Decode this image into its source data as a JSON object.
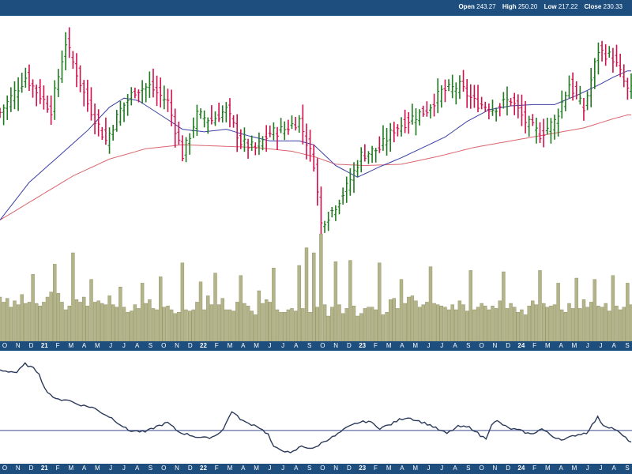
{
  "quote": {
    "open_label": "Open",
    "open": "243.27",
    "high_label": "High",
    "high": "250.20",
    "low_label": "Low",
    "low": "217.22",
    "close_label": "Close",
    "close": "230.33"
  },
  "colors": {
    "header": "#1d4e7e",
    "up": "#1f7a1f",
    "down": "#d0104c",
    "ma_short": "#3a3ea6",
    "ma_long": "#d9646e",
    "volume": "#b4b48a",
    "indicator": "#2b3a5a",
    "indicator_ref": "#3a4a8a"
  },
  "chart_data": [
    {
      "type": "ohlc",
      "name": "price",
      "x_tick_labels": [
        "O",
        "N",
        "D",
        "21",
        "F",
        "M",
        "A",
        "M",
        "J",
        "J",
        "A",
        "S",
        "O",
        "N",
        "D",
        "22",
        "F",
        "M",
        "A",
        "M",
        "J",
        "J",
        "A",
        "S",
        "O",
        "N",
        "D",
        "23",
        "F",
        "M",
        "A",
        "M",
        "J",
        "J",
        "A",
        "S",
        "O",
        "N",
        "D",
        "24",
        "F",
        "M",
        "A",
        "M",
        "J",
        "J",
        "A",
        "S"
      ],
      "x_ticks_bold": [
        "21",
        "22",
        "23",
        "24"
      ],
      "ylim": [
        180,
        370
      ],
      "close_anchors": [
        [
          0,
          298
        ],
        [
          7,
          325
        ],
        [
          14,
          300
        ],
        [
          18,
          352
        ],
        [
          24,
          305
        ],
        [
          29,
          276
        ],
        [
          33,
          300
        ],
        [
          37,
          315
        ],
        [
          41,
          318
        ],
        [
          46,
          306
        ],
        [
          50,
          265
        ],
        [
          54,
          296
        ],
        [
          58,
          292
        ],
        [
          62,
          300
        ],
        [
          66,
          275
        ],
        [
          70,
          270
        ],
        [
          74,
          282
        ],
        [
          78,
          285
        ],
        [
          82,
          292
        ],
        [
          86,
          259
        ],
        [
          88,
          212
        ],
        [
          91,
          222
        ],
        [
          95,
          240
        ],
        [
          99,
          265
        ],
        [
          104,
          270
        ],
        [
          108,
          285
        ],
        [
          113,
          294
        ],
        [
          117,
          300
        ],
        [
          121,
          314
        ],
        [
          126,
          318
        ],
        [
          130,
          306
        ],
        [
          135,
          301
        ],
        [
          140,
          308
        ],
        [
          144,
          291
        ],
        [
          148,
          281
        ],
        [
          152,
          291
        ],
        [
          156,
          320
        ],
        [
          160,
          300
        ],
        [
          164,
          346
        ],
        [
          168,
          340
        ],
        [
          170,
          328
        ],
        [
          172,
          315
        ]
      ],
      "ma_short_anchors": [
        [
          0,
          215
        ],
        [
          8,
          244
        ],
        [
          16,
          264
        ],
        [
          24,
          284
        ],
        [
          30,
          302
        ],
        [
          34,
          309
        ],
        [
          38,
          307
        ],
        [
          44,
          296
        ],
        [
          50,
          285
        ],
        [
          56,
          283
        ],
        [
          62,
          285
        ],
        [
          68,
          280
        ],
        [
          74,
          276
        ],
        [
          78,
          276
        ],
        [
          82,
          276
        ],
        [
          86,
          273
        ],
        [
          92,
          257
        ],
        [
          98,
          248
        ],
        [
          104,
          256
        ],
        [
          110,
          263
        ],
        [
          116,
          271
        ],
        [
          122,
          279
        ],
        [
          128,
          291
        ],
        [
          134,
          300
        ],
        [
          140,
          303
        ],
        [
          146,
          304
        ],
        [
          152,
          304
        ],
        [
          158,
          311
        ],
        [
          164,
          319
        ],
        [
          168,
          325
        ],
        [
          172,
          330
        ]
      ],
      "ma_long_anchors": [
        [
          0,
          215
        ],
        [
          10,
          232
        ],
        [
          20,
          249
        ],
        [
          30,
          262
        ],
        [
          40,
          270
        ],
        [
          50,
          273
        ],
        [
          60,
          272
        ],
        [
          70,
          271
        ],
        [
          80,
          268
        ],
        [
          86,
          264
        ],
        [
          92,
          258
        ],
        [
          100,
          257
        ],
        [
          110,
          258
        ],
        [
          120,
          264
        ],
        [
          130,
          271
        ],
        [
          140,
          276
        ],
        [
          150,
          281
        ],
        [
          160,
          286
        ],
        [
          168,
          293
        ],
        [
          172,
          296
        ]
      ]
    },
    {
      "type": "bar",
      "name": "volume",
      "values": [
        35,
        31,
        34,
        27,
        32,
        29,
        37,
        30,
        31,
        29,
        30,
        28,
        31,
        35,
        39,
        34,
        38,
        31,
        25,
        28,
        40,
        33,
        31,
        35,
        28,
        25,
        31,
        32,
        30,
        29,
        36,
        29,
        27,
        25,
        27,
        23,
        24,
        29,
        26,
        25,
        30,
        33,
        26,
        25,
        24,
        27,
        28,
        25,
        22,
        23,
        27,
        25,
        24,
        25,
        31,
        25,
        25,
        36,
        29,
        28,
        29,
        34,
        25,
        25,
        24,
        31,
        29,
        30,
        28,
        24,
        21,
        40,
        30,
        33,
        31,
        26,
        25,
        23,
        23,
        25,
        26,
        24,
        25,
        26,
        27,
        23,
        20,
        27,
        23,
        29,
        20,
        27,
        24,
        29,
        22,
        26,
        25,
        28,
        20,
        22,
        26,
        27,
        27,
        25,
        24,
        21,
        23,
        33,
        34,
        26,
        28,
        30,
        35,
        36,
        32,
        27,
        29,
        31,
        33,
        30,
        29,
        28,
        27,
        25,
        29,
        25,
        32,
        29,
        24,
        26,
        25,
        27,
        30,
        28,
        25,
        28,
        26,
        32,
        28,
        26,
        30,
        27,
        23,
        25,
        21,
        28,
        32,
        29,
        33,
        30,
        27,
        28,
        29,
        31,
        25,
        23,
        30,
        26,
        28,
        26,
        33,
        27,
        31,
        30,
        28,
        27,
        30,
        24,
        29,
        28,
        25,
        27,
        31,
        29
      ],
      "spikes": [
        [
          9,
          24
        ],
        [
          15,
          27
        ],
        [
          20,
          30
        ],
        [
          25,
          24
        ],
        [
          33,
          18
        ],
        [
          39,
          21
        ],
        [
          44,
          27
        ],
        [
          50,
          35
        ],
        [
          55,
          22
        ],
        [
          59,
          26
        ],
        [
          66,
          23
        ],
        [
          75,
          32
        ],
        [
          82,
          35
        ],
        [
          84,
          47
        ],
        [
          86,
          50
        ],
        [
          88,
          62
        ],
        [
          92,
          39
        ],
        [
          96,
          39
        ],
        [
          104,
          38
        ],
        [
          110,
          21
        ],
        [
          118,
          26
        ],
        [
          129,
          30
        ],
        [
          138,
          27
        ],
        [
          148,
          23
        ],
        [
          153,
          15
        ],
        [
          158,
          22
        ],
        [
          163,
          19
        ],
        [
          168,
          23
        ],
        [
          172,
          15
        ]
      ]
    },
    {
      "type": "line",
      "name": "indicator",
      "reference_level": 0,
      "ylim": [
        -40,
        100
      ],
      "anchors": [
        [
          0,
          78
        ],
        [
          6,
          75
        ],
        [
          9,
          86
        ],
        [
          12,
          80
        ],
        [
          14,
          74
        ],
        [
          16,
          54
        ],
        [
          20,
          40
        ],
        [
          24,
          40
        ],
        [
          27,
          35
        ],
        [
          30,
          32
        ],
        [
          33,
          30
        ],
        [
          36,
          24
        ],
        [
          40,
          16
        ],
        [
          46,
          0
        ],
        [
          52,
          -2
        ],
        [
          56,
          5
        ],
        [
          60,
          10
        ],
        [
          64,
          -2
        ],
        [
          70,
          -8
        ],
        [
          74,
          -10
        ],
        [
          77,
          -7
        ],
        [
          80,
          2
        ],
        [
          83,
          25
        ],
        [
          85,
          18
        ],
        [
          88,
          10
        ],
        [
          92,
          6
        ],
        [
          96,
          -5
        ],
        [
          98,
          -22
        ],
        [
          101,
          -25
        ],
        [
          104,
          -30
        ],
        [
          108,
          -20
        ],
        [
          112,
          -24
        ],
        [
          116,
          -14
        ],
        [
          120,
          -7
        ],
        [
          124,
          3
        ],
        [
          128,
          10
        ],
        [
          132,
          12
        ],
        [
          136,
          3
        ],
        [
          140,
          8
        ],
        [
          143,
          14
        ],
        [
          146,
          17
        ],
        [
          150,
          12
        ],
        [
          154,
          7
        ],
        [
          157,
          1
        ],
        [
          160,
          -4
        ],
        [
          164,
          5
        ],
        [
          168,
          4
        ],
        [
          170,
          0
        ],
        [
          172,
          -7
        ],
        [
          174,
          -10
        ],
        [
          176,
          8
        ],
        [
          178,
          12
        ],
        [
          182,
          3
        ],
        [
          186,
          0
        ],
        [
          190,
          -5
        ],
        [
          194,
          2
        ],
        [
          198,
          -8
        ],
        [
          202,
          -12
        ],
        [
          206,
          -6
        ],
        [
          210,
          -3
        ],
        [
          214,
          17
        ],
        [
          216,
          7
        ],
        [
          220,
          2
        ],
        [
          224,
          -10
        ],
        [
          226,
          -15
        ]
      ]
    }
  ]
}
